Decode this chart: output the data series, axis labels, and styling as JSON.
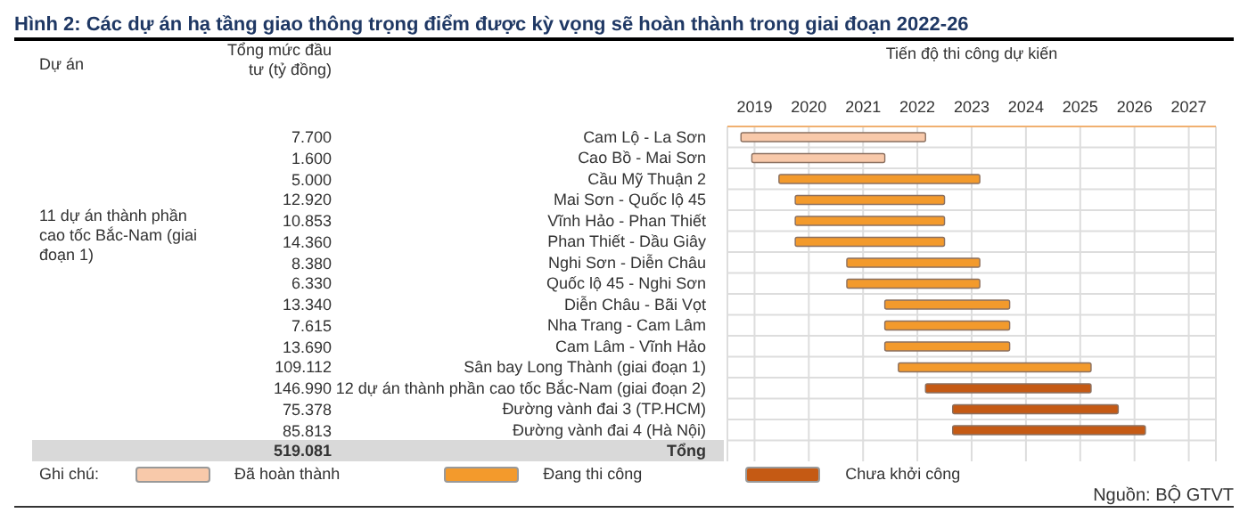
{
  "chart_data": {
    "type": "bar",
    "orientation": "horizontal",
    "title": "Hình 2: Các dự án hạ tầng giao thông trọng điểm được kỳ vọng sẽ hoàn thành trong giai đoạn 2022-26",
    "xlabel": "Tiến độ thi công dự kiến",
    "legend_title": "Ghi chú:",
    "categories": [
      "Cam Lộ - La Sơn",
      "Cao Bồ - Mai Sơn",
      "Cầu Mỹ Thuận 2",
      "Mai Sơn - Quốc lộ 45",
      "Vĩnh Hảo - Phan Thiết",
      "Phan Thiết - Dầu Giây",
      "Nghi Sơn - Diễn Châu",
      "Quốc lộ 45 - Nghi Sơn",
      "Diễn Châu - Bãi Vọt",
      "Nha Trang - Cam Lâm",
      "Cam Lâm - Vĩnh Hảo",
      "Sân bay Long Thành (giai đoạn 1)",
      "12 dự án thành phần cao tốc Bắc-Nam (giai đoạn 2)",
      "Đường vành đai 3 (TP.HCM)",
      "Đường vành đai 4 (Hà Nội)",
      "Tổng"
    ],
    "series": [
      {
        "name": "Đã hoàn thành",
        "color": "#f8c9aa",
        "base": [
          2018.75,
          2018.95,
          null,
          null,
          null,
          null,
          null,
          null,
          null,
          null,
          null,
          null,
          null,
          null,
          null,
          null
        ],
        "values": [
          3.4,
          2.45,
          null,
          null,
          null,
          null,
          null,
          null,
          null,
          null,
          null,
          null,
          null,
          null,
          null,
          null
        ]
      },
      {
        "name": "Đang thi công",
        "color": "#f39a2c",
        "base": [
          null,
          null,
          2019.45,
          2019.75,
          2019.75,
          2019.75,
          2020.7,
          2020.7,
          2021.4,
          2021.4,
          2021.4,
          2021.65,
          null,
          null,
          null,
          null
        ],
        "values": [
          null,
          null,
          3.7,
          2.75,
          2.75,
          2.75,
          2.45,
          2.45,
          2.3,
          2.3,
          2.3,
          3.55,
          null,
          null,
          null,
          null
        ]
      },
      {
        "name": "Chưa khởi công",
        "color": "#c55a14",
        "base": [
          null,
          null,
          null,
          null,
          null,
          null,
          null,
          null,
          null,
          null,
          null,
          null,
          2022.15,
          2022.65,
          2022.65,
          null
        ],
        "values": [
          null,
          null,
          null,
          null,
          null,
          null,
          null,
          null,
          null,
          null,
          null,
          null,
          3.05,
          3.05,
          3.55,
          null
        ]
      }
    ],
    "xlim": [
      2018.5,
      2027.5
    ],
    "xticks": [
      2019,
      2020,
      2021,
      2022,
      2023,
      2024,
      2025,
      2026,
      2027
    ],
    "grid": true,
    "legend": "bottom",
    "annotations": [
      "Dự án",
      "Tổng mức đầu tư (tỷ đồng)",
      "11 dự án thành phần cao tốc Bắc-Nam (giai đoạn 1)",
      "Nguồn: BỘ GTVT",
      "7.700",
      "1.600",
      "5.000",
      "12.920",
      "10.853",
      "14.360",
      "8.380",
      "6.330",
      "13.340",
      "7.615",
      "13.690",
      "109.112",
      "146.990",
      "75.378",
      "85.813",
      "519.081"
    ]
  }
}
